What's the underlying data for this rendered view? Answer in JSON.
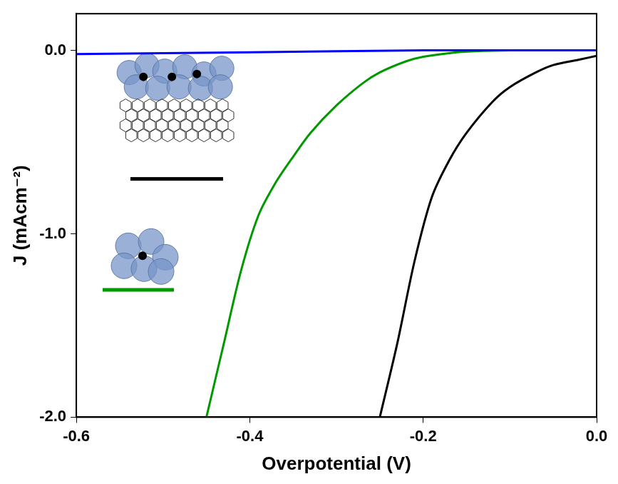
{
  "chart_data": {
    "type": "line",
    "x_label": "Overpotential (V)",
    "y_label": "J (mAcm⁻²)",
    "xlim": [
      -0.6,
      0.0
    ],
    "xticks": [
      -0.6,
      -0.4,
      -0.2,
      {
        "value": 0,
        "label": "0.0"
      }
    ],
    "ylim": [
      -2.0,
      0.2
    ],
    "yticks": [
      {
        "value": -2,
        "label": "-2.0"
      },
      {
        "value": -1,
        "label": "-1.0"
      },
      {
        "value": 0,
        "label": "0.0"
      }
    ],
    "grid": false,
    "series": [
      {
        "color": "#0000ff",
        "x": [
          -0.6,
          -0.4,
          -0.2,
          0.0
        ],
        "values": [
          -0.02,
          -0.01,
          0.0,
          0.0
        ]
      },
      {
        "color": "#009900",
        "x": [
          -0.45,
          -0.43,
          -0.41,
          -0.39,
          -0.37,
          -0.35,
          -0.33,
          -0.3,
          -0.27,
          -0.25,
          -0.22,
          -0.2,
          -0.17,
          -0.14,
          -0.1,
          -0.05,
          0.0
        ],
        "values": [
          -2.0,
          -1.6,
          -1.2,
          -0.9,
          -0.72,
          -0.58,
          -0.45,
          -0.3,
          -0.18,
          -0.12,
          -0.06,
          -0.035,
          -0.015,
          -0.005,
          0.0,
          0.0,
          0.0
        ]
      },
      {
        "color": "#000000",
        "x": [
          -0.25,
          -0.23,
          -0.21,
          -0.19,
          -0.17,
          -0.15,
          -0.12,
          -0.1,
          -0.07,
          -0.05,
          -0.02,
          0.0
        ],
        "values": [
          -2.0,
          -1.6,
          -1.15,
          -0.8,
          -0.6,
          -0.45,
          -0.28,
          -0.2,
          -0.12,
          -0.08,
          -0.05,
          -0.03
        ]
      }
    ]
  }
}
